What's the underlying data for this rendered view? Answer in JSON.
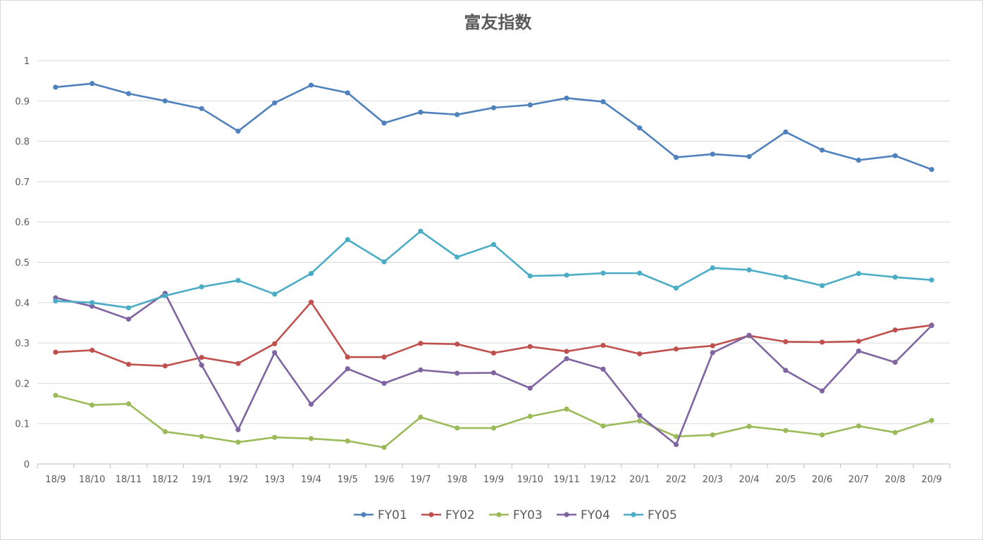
{
  "chart_data": {
    "type": "line",
    "title": "富友指数",
    "xlabel": "",
    "ylabel": "",
    "ylim": [
      0,
      1
    ],
    "yticks": [
      "0",
      "0.1",
      "0.2",
      "0.3",
      "0.4",
      "0.5",
      "0.6",
      "0.7",
      "0.8",
      "0.9",
      "1"
    ],
    "grid": true,
    "legend_position": "bottom",
    "categories": [
      "18/9",
      "18/10",
      "18/11",
      "18/12",
      "19/1",
      "19/2",
      "19/3",
      "19/4",
      "19/5",
      "19/6",
      "19/7",
      "19/8",
      "19/9",
      "19/10",
      "19/11",
      "19/12",
      "20/1",
      "20/2",
      "20/3",
      "20/4",
      "20/5",
      "20/6",
      "20/7",
      "20/8",
      "20/9"
    ],
    "series": [
      {
        "name": "FY01",
        "color": "#4f81bd",
        "values": [
          0.934,
          0.943,
          0.918,
          0.9,
          0.881,
          0.825,
          0.895,
          0.939,
          0.92,
          0.845,
          0.872,
          0.866,
          0.883,
          0.89,
          0.907,
          0.898,
          0.833,
          0.76,
          0.768,
          0.762,
          0.823,
          0.778,
          0.753,
          0.764,
          0.73
        ]
      },
      {
        "name": "FY02",
        "color": "#c0504d",
        "values": [
          0.277,
          0.282,
          0.247,
          0.243,
          0.264,
          0.249,
          0.298,
          0.401,
          0.265,
          0.265,
          0.299,
          0.297,
          0.275,
          0.291,
          0.279,
          0.294,
          0.273,
          0.285,
          0.293,
          0.318,
          0.303,
          0.302,
          0.304,
          0.332,
          0.344
        ]
      },
      {
        "name": "FY03",
        "color": "#9bbb59",
        "values": [
          0.17,
          0.146,
          0.149,
          0.08,
          0.068,
          0.054,
          0.066,
          0.063,
          0.057,
          0.041,
          0.116,
          0.089,
          0.089,
          0.118,
          0.136,
          0.094,
          0.107,
          0.068,
          0.072,
          0.093,
          0.083,
          0.072,
          0.094,
          0.078,
          0.108
        ]
      },
      {
        "name": "FY04",
        "color": "#8064a2",
        "values": [
          0.412,
          0.391,
          0.359,
          0.423,
          0.245,
          0.085,
          0.276,
          0.148,
          0.236,
          0.2,
          0.233,
          0.225,
          0.226,
          0.188,
          0.261,
          0.235,
          0.12,
          0.048,
          0.276,
          0.319,
          0.232,
          0.181,
          0.28,
          0.252,
          0.343
        ]
      },
      {
        "name": "FY05",
        "color": "#4bacc6",
        "values": [
          0.404,
          0.4,
          0.387,
          0.417,
          0.439,
          0.455,
          0.421,
          0.472,
          0.556,
          0.501,
          0.577,
          0.513,
          0.544,
          0.466,
          0.468,
          0.473,
          0.473,
          0.436,
          0.486,
          0.481,
          0.463,
          0.442,
          0.472,
          0.463,
          0.456
        ]
      }
    ]
  }
}
